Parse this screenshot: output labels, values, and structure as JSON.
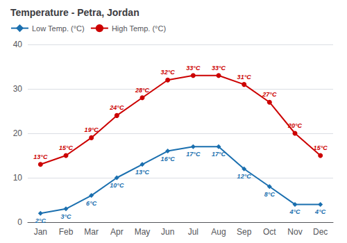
{
  "chart_data": {
    "type": "line",
    "title": "Temperature - Petra, Jordan",
    "categories": [
      "Jan",
      "Feb",
      "Mar",
      "Apr",
      "May",
      "Jun",
      "Jul",
      "Aug",
      "Sep",
      "Oct",
      "Nov",
      "Dec"
    ],
    "series": [
      {
        "name": "Low Temp. (°C)",
        "color": "#1a6faf",
        "marker": "diamond",
        "values": [
          2,
          3,
          6,
          10,
          13,
          16,
          17,
          17,
          12,
          8,
          4,
          4
        ],
        "value_labels": [
          "2°C",
          "3°C",
          "6°C",
          "10°C",
          "13°C",
          "16°C",
          "17°C",
          "17°C",
          "12°C",
          "8°C",
          "4°C",
          "4°C"
        ]
      },
      {
        "name": "High Temp. (°C)",
        "color": "#cc0000",
        "marker": "circle",
        "values": [
          13,
          15,
          19,
          24,
          28,
          32,
          33,
          33,
          31,
          27,
          20,
          15
        ],
        "value_labels": [
          "13°C",
          "15°C",
          "19°C",
          "24°C",
          "28°C",
          "32°C",
          "33°C",
          "33°C",
          "31°C",
          "27°C",
          "20°C",
          "15°C"
        ]
      }
    ],
    "ylim": [
      0,
      40
    ],
    "yticks": [
      0,
      10,
      20,
      30,
      40
    ],
    "grid": true,
    "legend": "upper left",
    "data_labels": true
  }
}
